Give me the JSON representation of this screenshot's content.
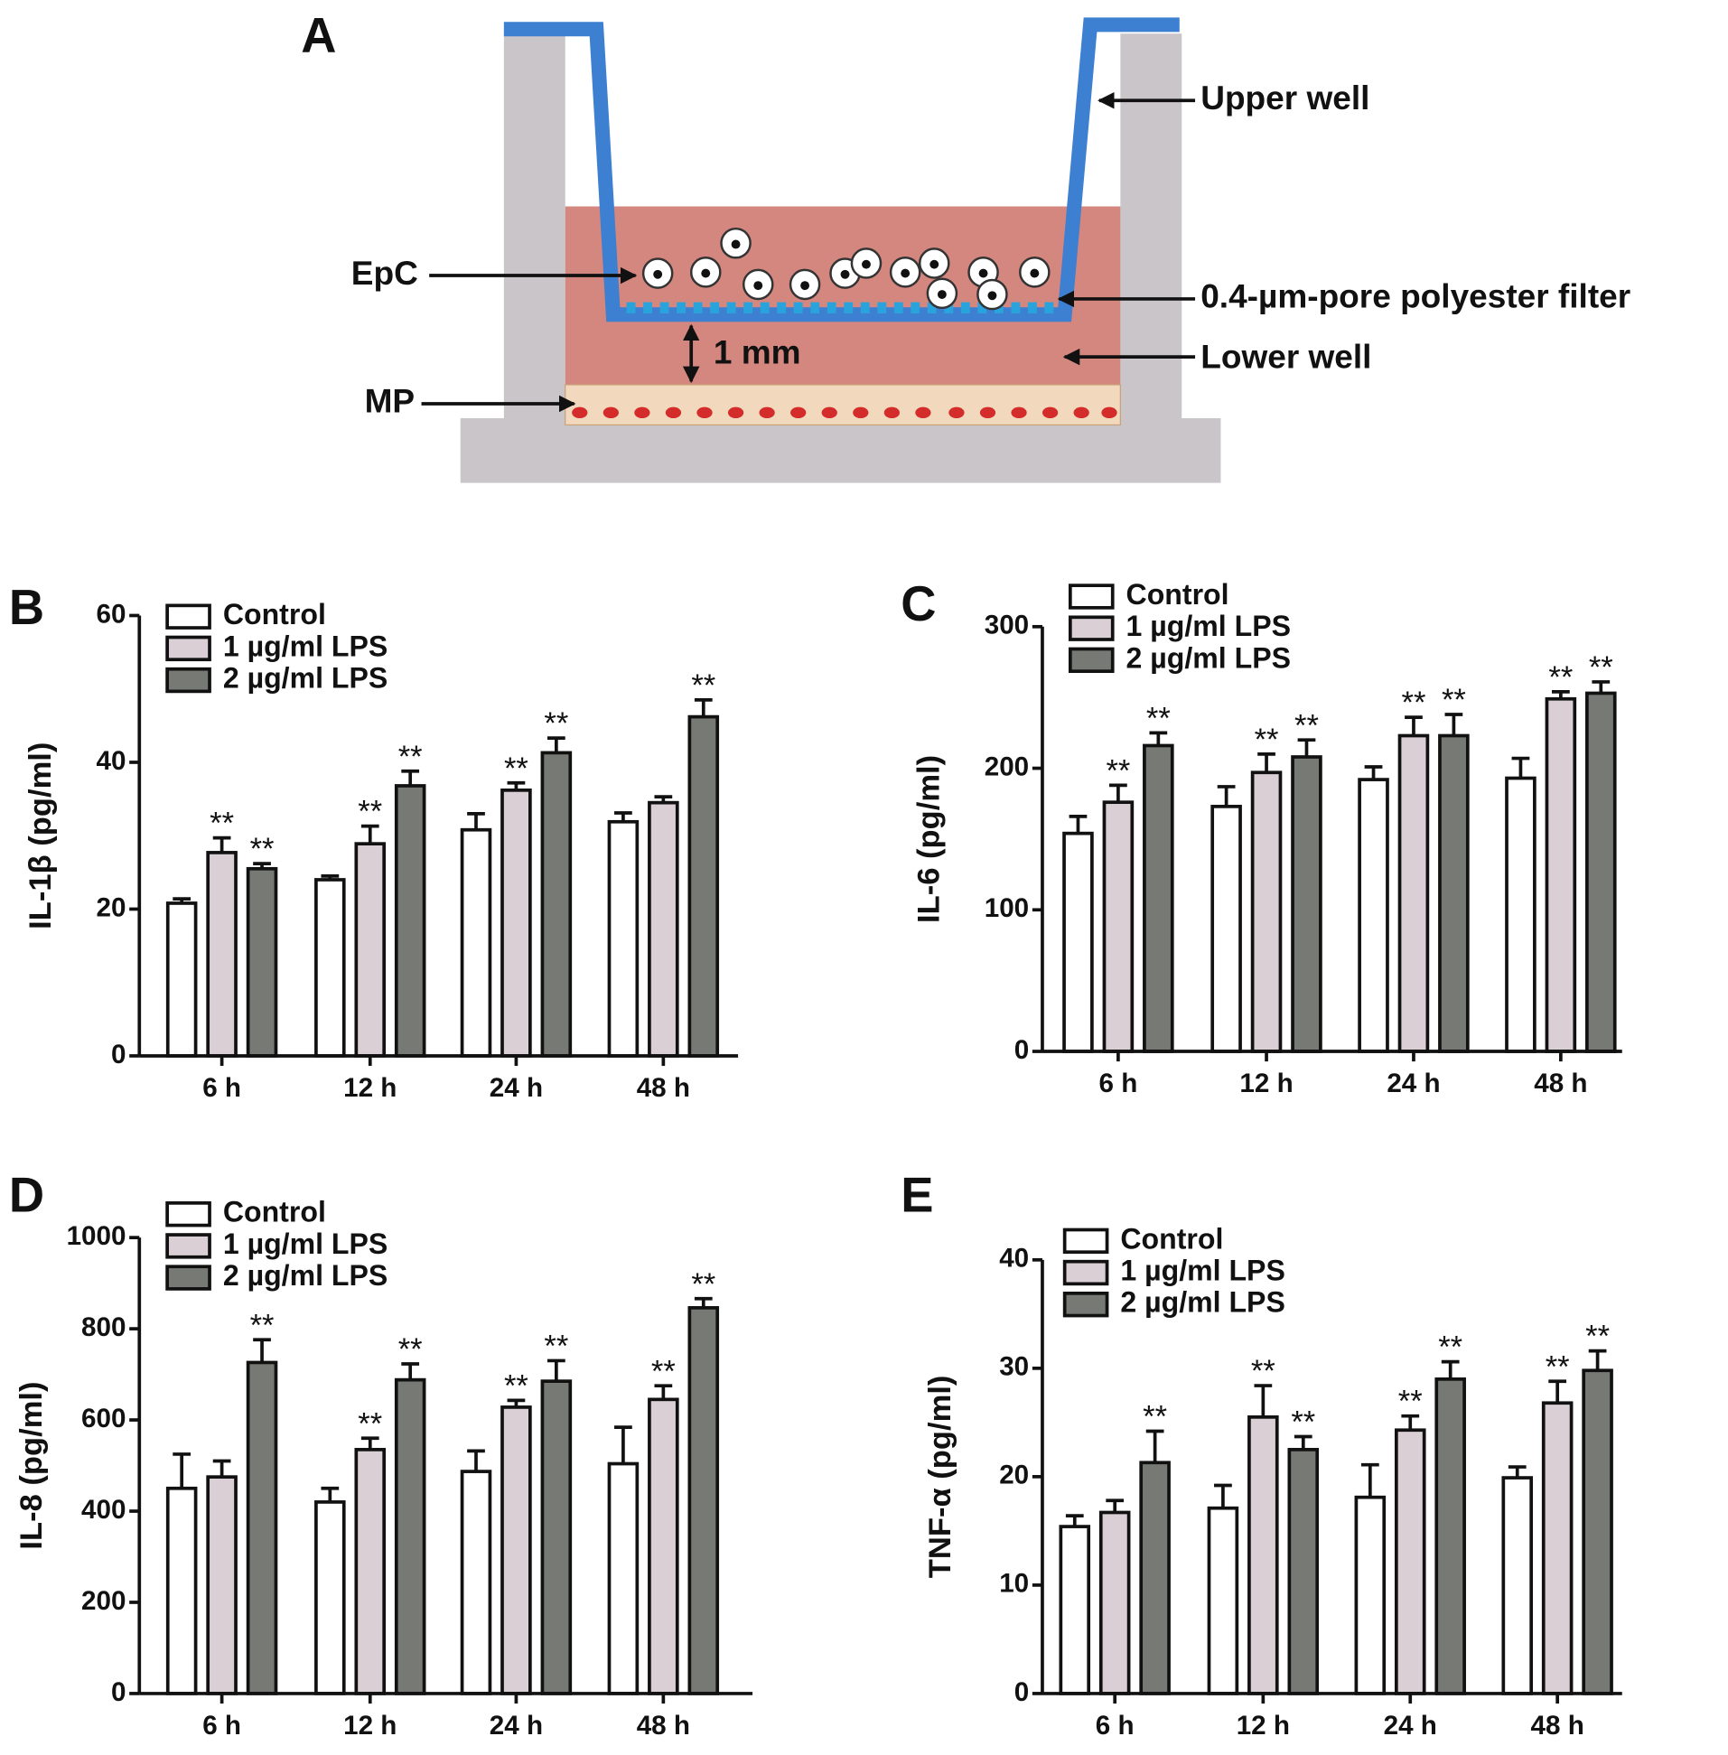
{
  "diagram": {
    "panel": "A",
    "labels": {
      "upper_well": "Upper well",
      "epc": "EpC",
      "filter": "0.4-µm-pore polyester filter",
      "lower_well": "Lower well",
      "mp": "MP",
      "distance": "1 mm"
    }
  },
  "chart_data": [
    {
      "type": "bar",
      "panel": "B",
      "ylabel": "IL-1β (pg/ml)",
      "categories": [
        "6 h",
        "12 h",
        "24 h",
        "48 h"
      ],
      "ylim": [
        0,
        60
      ],
      "yticks": [
        0,
        20,
        40,
        60
      ],
      "series": [
        {
          "name": "Control",
          "color": "#ffffff",
          "values": [
            20.8,
            24.0,
            30.8,
            31.9
          ],
          "errors": [
            0.6,
            0.5,
            2.2,
            1.2
          ],
          "annotations": [
            null,
            null,
            null,
            null
          ]
        },
        {
          "name": "1 µg/ml LPS",
          "color": "#d9cfd4",
          "values": [
            27.7,
            28.9,
            36.2,
            34.5
          ],
          "errors": [
            2.0,
            2.4,
            1.0,
            0.8
          ],
          "annotations": [
            "**",
            "**",
            "**",
            null
          ]
        },
        {
          "name": "2 µg/ml LPS",
          "color": "#777a74",
          "values": [
            25.5,
            36.8,
            41.3,
            46.2
          ],
          "errors": [
            0.7,
            2.0,
            2.0,
            2.3
          ],
          "annotations": [
            "**",
            "**",
            "**",
            "**"
          ]
        }
      ]
    },
    {
      "type": "bar",
      "panel": "C",
      "ylabel": "IL-6 (pg/ml)",
      "categories": [
        "6 h",
        "12 h",
        "24 h",
        "48 h"
      ],
      "ylim": [
        0,
        300
      ],
      "yticks": [
        0,
        100,
        200,
        300
      ],
      "series": [
        {
          "name": "Control",
          "color": "#ffffff",
          "values": [
            154,
            173,
            192,
            193
          ],
          "errors": [
            12,
            14,
            9,
            14
          ],
          "annotations": [
            null,
            null,
            null,
            null
          ]
        },
        {
          "name": "1 µg/ml LPS",
          "color": "#d9cfd4",
          "values": [
            176,
            197,
            223,
            249
          ],
          "errors": [
            12,
            13,
            13,
            5
          ],
          "annotations": [
            "**",
            "**",
            "**",
            "**"
          ]
        },
        {
          "name": "2 µg/ml LPS",
          "color": "#777a74",
          "values": [
            216,
            208,
            223,
            253
          ],
          "errors": [
            9,
            12,
            15,
            8
          ],
          "annotations": [
            "**",
            "**",
            "**",
            "**"
          ]
        }
      ]
    },
    {
      "type": "bar",
      "panel": "D",
      "ylabel": "IL-8 (pg/ml)",
      "categories": [
        "6 h",
        "12 h",
        "24 h",
        "48 h"
      ],
      "ylim": [
        0,
        1000
      ],
      "yticks": [
        0,
        200,
        400,
        600,
        800,
        1000
      ],
      "series": [
        {
          "name": "Control",
          "color": "#ffffff",
          "values": [
            450,
            420,
            487,
            504
          ],
          "errors": [
            75,
            30,
            45,
            80
          ],
          "annotations": [
            null,
            null,
            null,
            null
          ]
        },
        {
          "name": "1 µg/ml LPS",
          "color": "#d9cfd4",
          "values": [
            475,
            535,
            628,
            645
          ],
          "errors": [
            35,
            25,
            15,
            30
          ],
          "annotations": [
            null,
            "**",
            "**",
            "**"
          ]
        },
        {
          "name": "2 µg/ml LPS",
          "color": "#777a74",
          "values": [
            726,
            688,
            685,
            846
          ],
          "errors": [
            50,
            35,
            45,
            20
          ],
          "annotations": [
            "**",
            "**",
            "**",
            "**"
          ]
        }
      ]
    },
    {
      "type": "bar",
      "panel": "E",
      "ylabel": "TNF-α (pg/ml)",
      "categories": [
        "6 h",
        "12 h",
        "24 h",
        "48 h"
      ],
      "ylim": [
        0,
        40
      ],
      "yticks": [
        0,
        10,
        20,
        30,
        40
      ],
      "series": [
        {
          "name": "Control",
          "color": "#ffffff",
          "values": [
            15.4,
            17.1,
            18.1,
            19.9
          ],
          "errors": [
            1.0,
            2.1,
            3.0,
            1.0
          ],
          "annotations": [
            null,
            null,
            null,
            null
          ]
        },
        {
          "name": "1 µg/ml LPS",
          "color": "#d9cfd4",
          "values": [
            16.7,
            25.5,
            24.3,
            26.8
          ],
          "errors": [
            1.1,
            2.9,
            1.3,
            2.0
          ],
          "annotations": [
            null,
            "**",
            "**",
            "**"
          ]
        },
        {
          "name": "2 µg/ml LPS",
          "color": "#777a74",
          "values": [
            21.3,
            22.5,
            29.0,
            29.8
          ],
          "errors": [
            2.9,
            1.2,
            1.6,
            1.8
          ],
          "annotations": [
            "**",
            "**",
            "**",
            "**"
          ]
        }
      ]
    }
  ]
}
